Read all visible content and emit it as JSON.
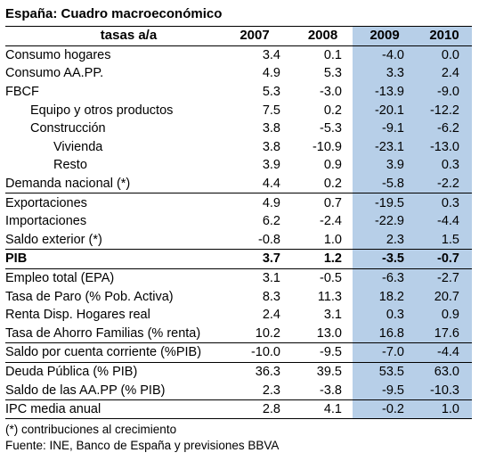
{
  "title": "España: Cuadro macroeconómico",
  "header": {
    "label": "tasas a/a",
    "years": [
      "2007",
      "2008",
      "2009",
      "2010"
    ]
  },
  "rows": [
    {
      "label": "Consumo hogares",
      "values": [
        "3.4",
        "0.1",
        "-4.0",
        "0.0"
      ]
    },
    {
      "label": "Consumo AA.PP.",
      "values": [
        "4.9",
        "5.3",
        "3.3",
        "2.4"
      ]
    },
    {
      "label": "FBCF",
      "values": [
        "5.3",
        "-3.0",
        "-13.9",
        "-9.0"
      ]
    },
    {
      "label": "Equipo y otros productos",
      "values": [
        "7.5",
        "0.2",
        "-20.1",
        "-12.2"
      ]
    },
    {
      "label": "Construcción",
      "values": [
        "3.8",
        "-5.3",
        "-9.1",
        "-6.2"
      ]
    },
    {
      "label": "Vivienda",
      "values": [
        "3.8",
        "-10.9",
        "-23.1",
        "-13.0"
      ]
    },
    {
      "label": "Resto",
      "values": [
        "3.9",
        "0.9",
        "3.9",
        "0.3"
      ]
    },
    {
      "label": "Demanda nacional (*)",
      "values": [
        "4.4",
        "0.2",
        "-5.8",
        "-2.2"
      ]
    },
    {
      "label": "Exportaciones",
      "values": [
        "4.9",
        "0.7",
        "-19.5",
        "0.3"
      ]
    },
    {
      "label": "Importaciones",
      "values": [
        "6.2",
        "-2.4",
        "-22.9",
        "-4.4"
      ]
    },
    {
      "label": "Saldo exterior (*)",
      "values": [
        "-0.8",
        "1.0",
        "2.3",
        "1.5"
      ]
    },
    {
      "label": "PIB",
      "values": [
        "3.7",
        "1.2",
        "-3.5",
        "-0.7"
      ]
    },
    {
      "label": "Empleo total (EPA)",
      "values": [
        "3.1",
        "-0.5",
        "-6.3",
        "-2.7"
      ]
    },
    {
      "label": "Tasa de Paro (% Pob. Activa)",
      "values": [
        "8.3",
        "11.3",
        "18.2",
        "20.7"
      ]
    },
    {
      "label": "Renta Disp. Hogares real",
      "values": [
        "2.4",
        "3.1",
        "0.3",
        "0.9"
      ]
    },
    {
      "label": "Tasa de Ahorro Familias (% renta)",
      "values": [
        "10.2",
        "13.0",
        "16.8",
        "17.6"
      ]
    },
    {
      "label": "Saldo por cuenta corriente (%PIB)",
      "values": [
        "-10.0",
        "-9.5",
        "-7.0",
        "-4.4"
      ]
    },
    {
      "label": "Deuda Pública (% PIB)",
      "values": [
        "36.3",
        "39.5",
        "53.5",
        "63.0"
      ]
    },
    {
      "label": "Saldo de las AA.PP (% PIB)",
      "values": [
        "2.3",
        "-3.8",
        "-9.5",
        "-10.3"
      ]
    },
    {
      "label": "IPC media anual",
      "values": [
        "2.8",
        "4.1",
        "-0.2",
        "1.0"
      ]
    }
  ],
  "notes": {
    "footnote": "(*) contribuciones al crecimiento",
    "source": "Fuente: INE, Banco de España y previsiones BBVA"
  },
  "colors": {
    "forecast_shade": "#b7cfe8"
  }
}
